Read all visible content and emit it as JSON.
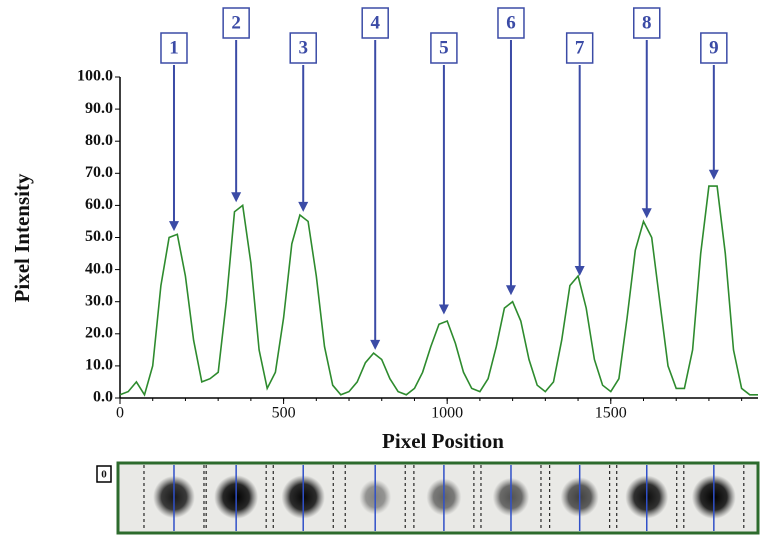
{
  "chart_data": {
    "type": "line",
    "xlabel": "Pixel Position",
    "ylabel": "Pixel Intensity",
    "x": [
      0,
      25,
      50,
      75,
      100,
      125,
      150,
      175,
      200,
      225,
      250,
      275,
      300,
      325,
      350,
      375,
      400,
      425,
      450,
      475,
      500,
      525,
      550,
      575,
      600,
      625,
      650,
      675,
      700,
      725,
      750,
      775,
      800,
      825,
      850,
      875,
      900,
      925,
      950,
      975,
      1000,
      1025,
      1050,
      1075,
      1100,
      1125,
      1150,
      1175,
      1200,
      1225,
      1250,
      1275,
      1300,
      1325,
      1350,
      1375,
      1400,
      1425,
      1450,
      1475,
      1500,
      1525,
      1550,
      1575,
      1600,
      1625,
      1650,
      1675,
      1700,
      1725,
      1750,
      1775,
      1800,
      1825,
      1850,
      1875,
      1900,
      1925,
      1950
    ],
    "values": [
      1,
      2,
      5,
      1,
      10,
      35,
      50,
      51,
      38,
      18,
      5,
      6,
      8,
      30,
      58,
      60,
      42,
      15,
      3,
      8,
      25,
      48,
      57,
      55,
      38,
      16,
      4,
      1,
      2,
      5,
      11,
      14,
      12,
      6,
      2,
      1,
      3,
      8,
      16,
      23,
      24,
      17,
      8,
      3,
      2,
      6,
      16,
      28,
      30,
      24,
      12,
      4,
      2,
      5,
      18,
      35,
      38,
      28,
      12,
      4,
      2,
      6,
      25,
      46,
      55,
      50,
      30,
      10,
      3,
      3,
      15,
      45,
      66,
      66,
      45,
      15,
      3,
      1,
      1
    ],
    "color": "#2e8b2e",
    "xlim": [
      0,
      1950
    ],
    "ylim": [
      0,
      100
    ],
    "xticks": [
      0,
      500,
      1000,
      1500
    ],
    "yticks": [
      {
        "value": 0,
        "label": "0.0"
      },
      {
        "value": 10,
        "label": "10.0"
      },
      {
        "value": 20,
        "label": "20.0"
      },
      {
        "value": 30,
        "label": "30.0"
      },
      {
        "value": 40,
        "label": "40.0"
      },
      {
        "value": 50,
        "label": "50.0"
      },
      {
        "value": 60,
        "label": "60.0"
      },
      {
        "value": 70,
        "label": "70.0"
      },
      {
        "value": 80,
        "label": "80.0"
      },
      {
        "value": 90,
        "label": "90.0"
      },
      {
        "value": 100,
        "label": "100.0"
      }
    ],
    "annotations": [
      {
        "label": "1",
        "x": 165,
        "y": 52
      },
      {
        "label": "2",
        "x": 355,
        "y": 61
      },
      {
        "label": "3",
        "x": 560,
        "y": 58
      },
      {
        "label": "4",
        "x": 780,
        "y": 15
      },
      {
        "label": "5",
        "x": 990,
        "y": 26
      },
      {
        "label": "6",
        "x": 1195,
        "y": 32
      },
      {
        "label": "7",
        "x": 1405,
        "y": 38
      },
      {
        "label": "8",
        "x": 1610,
        "y": 56
      },
      {
        "label": "9",
        "x": 1815,
        "y": 68
      }
    ],
    "gel_label": "0",
    "annotation_color": "#3b4ba6"
  }
}
